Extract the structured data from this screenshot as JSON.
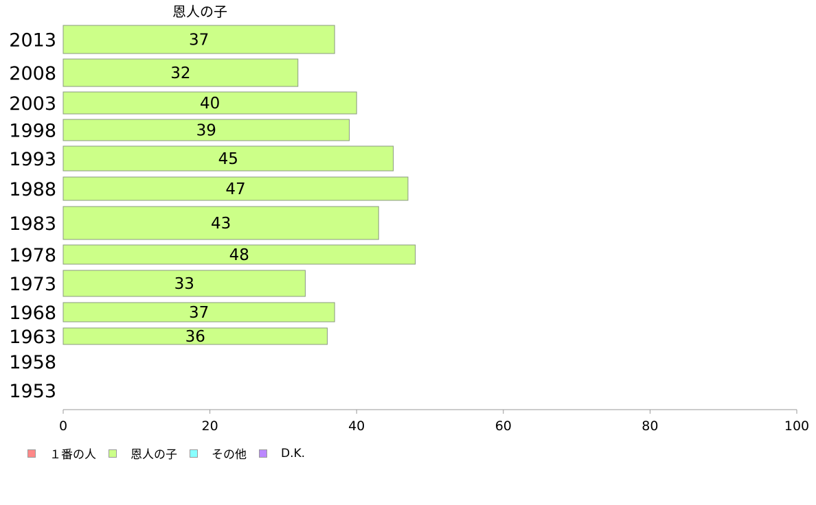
{
  "chart_data": {
    "type": "bar",
    "orientation": "horizontal",
    "title": "恩人の子",
    "categories": [
      "2013",
      "2008",
      "2003",
      "1998",
      "1993",
      "1988",
      "1983",
      "1978",
      "1973",
      "1968",
      "1963",
      "1958",
      "1953"
    ],
    "series": [
      {
        "name": "恩人の子",
        "color": "#ccff88",
        "values": [
          37,
          32,
          40,
          39,
          45,
          47,
          43,
          48,
          33,
          37,
          36,
          null,
          null
        ]
      }
    ],
    "xlim": [
      0,
      100
    ],
    "xticks": [
      0,
      20,
      40,
      60,
      80,
      100
    ],
    "grid": false,
    "legend_position": "bottom-left"
  },
  "legend": [
    {
      "label": "１番の人",
      "color": "#ff8888"
    },
    {
      "label": "恩人の子",
      "color": "#ccff88"
    },
    {
      "label": "その他",
      "color": "#88ffff"
    },
    {
      "label": "D.K.",
      "color": "#bb88ff"
    }
  ]
}
